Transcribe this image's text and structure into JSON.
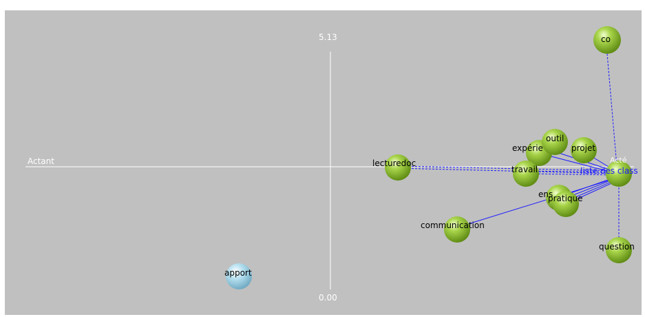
{
  "axes": {
    "x_label": "Actant",
    "y_top": "5.13",
    "y_bottom": "0.00"
  },
  "nodes": [
    {
      "id": "co",
      "label": "co",
      "color": "green"
    },
    {
      "id": "experience",
      "label": "expérie",
      "color": "green"
    },
    {
      "id": "outil",
      "label": "outil",
      "color": "green"
    },
    {
      "id": "projet",
      "label": "projet",
      "color": "green"
    },
    {
      "id": "travail",
      "label": "travail",
      "color": "green"
    },
    {
      "id": "lecturedoc",
      "label": "lecturedoc",
      "color": "green"
    },
    {
      "id": "ens",
      "label": "ens",
      "color": "green"
    },
    {
      "id": "pratique",
      "label": "pratique",
      "color": "green"
    },
    {
      "id": "communication",
      "label": "communication",
      "color": "green"
    },
    {
      "id": "question",
      "label": "question",
      "color": "green"
    },
    {
      "id": "hub",
      "label": "",
      "color": "green"
    },
    {
      "id": "apport",
      "label": "apport",
      "color": "blue"
    }
  ],
  "hub_label": "liste des class",
  "hub_label_faint": "Acté"
}
